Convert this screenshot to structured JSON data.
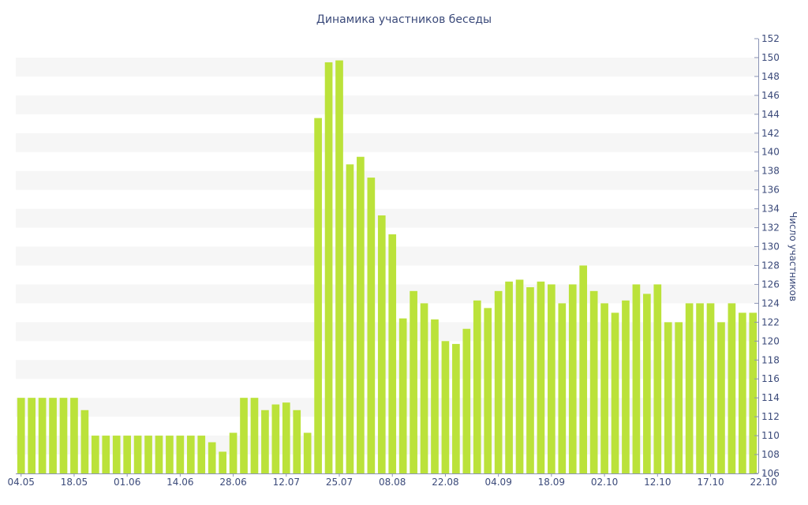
{
  "chart_data": {
    "type": "bar",
    "title": "Динамика участников беседы",
    "ylabel": "Число участников",
    "xlabel": "",
    "ylim": [
      106,
      152
    ],
    "y_ticks": [
      106,
      108,
      110,
      112,
      114,
      116,
      118,
      120,
      122,
      124,
      126,
      128,
      130,
      132,
      134,
      136,
      138,
      140,
      142,
      144,
      146,
      148,
      150,
      152
    ],
    "y_axis_position": "right",
    "grid": "alternating horizontal bands",
    "x_tick_labels": [
      "04.05",
      "18.05",
      "01.06",
      "14.06",
      "28.06",
      "12.07",
      "25.07",
      "08.08",
      "22.08",
      "04.09",
      "18.09",
      "02.10",
      "12.10",
      "17.10",
      "22.10"
    ],
    "x_tick_label_bar_index": [
      0,
      5,
      10,
      15,
      20,
      25,
      30,
      35,
      40,
      45,
      50,
      55,
      60,
      65,
      70
    ],
    "values": [
      114,
      114,
      114,
      114,
      114,
      114,
      112.7,
      110,
      110,
      110,
      110,
      110,
      110,
      110,
      110,
      110,
      110,
      110,
      109.3,
      108.3,
      110.3,
      114,
      114,
      112.7,
      113.3,
      113.5,
      112.7,
      110.3,
      143.6,
      149.5,
      149.7,
      138.7,
      139.5,
      137.3,
      133.3,
      131.3,
      122.4,
      125.3,
      124,
      122.3,
      120,
      119.7,
      121.3,
      124.3,
      123.5,
      125.3,
      126.3,
      126.5,
      125.7,
      126.3,
      126,
      124,
      126,
      128,
      125.3,
      124,
      123,
      124.3,
      126,
      125,
      126,
      122,
      122,
      124,
      124,
      124,
      122,
      124,
      123,
      123
    ],
    "bar_color": "#bbe23a",
    "band_color": "#f6f6f6"
  }
}
